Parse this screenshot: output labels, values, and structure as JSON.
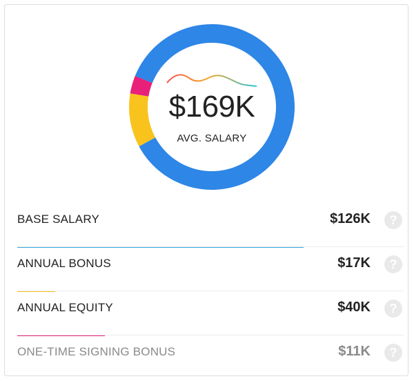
{
  "summary": {
    "amount": "$169K",
    "label": "AVG. SALARY"
  },
  "colors": {
    "base": "#2e86e6",
    "bonus": "#f9c31e",
    "equity": "#e8207a",
    "signing": "#2e86e6",
    "base_bar": "#36a8e0",
    "gradient_start": "#ff4d4d",
    "gradient_end": "#2ec4d6"
  },
  "components": [
    {
      "label": "BASE SALARY",
      "value": "$126K",
      "amount_k": 126,
      "bar_fraction": 0.75
    },
    {
      "label": "ANNUAL BONUS",
      "value": "$17K",
      "amount_k": 17,
      "bar_fraction": 0.1
    },
    {
      "label": "ANNUAL EQUITY",
      "value": "$40K",
      "amount_k": 40,
      "bar_fraction": 0.23
    },
    {
      "label": "ONE-TIME SIGNING BONUS",
      "value": "$11K",
      "amount_k": 11,
      "bar_fraction": 0
    }
  ],
  "donut": {
    "segments": [
      {
        "name": "base",
        "fraction": 0.843
      },
      {
        "name": "bonus",
        "fraction": 0.105
      },
      {
        "name": "equity",
        "fraction": 0.035
      },
      {
        "name": "base",
        "fraction": 0.017
      }
    ]
  },
  "icons": {
    "help": "question-circle-icon",
    "help_glyph": "?"
  }
}
